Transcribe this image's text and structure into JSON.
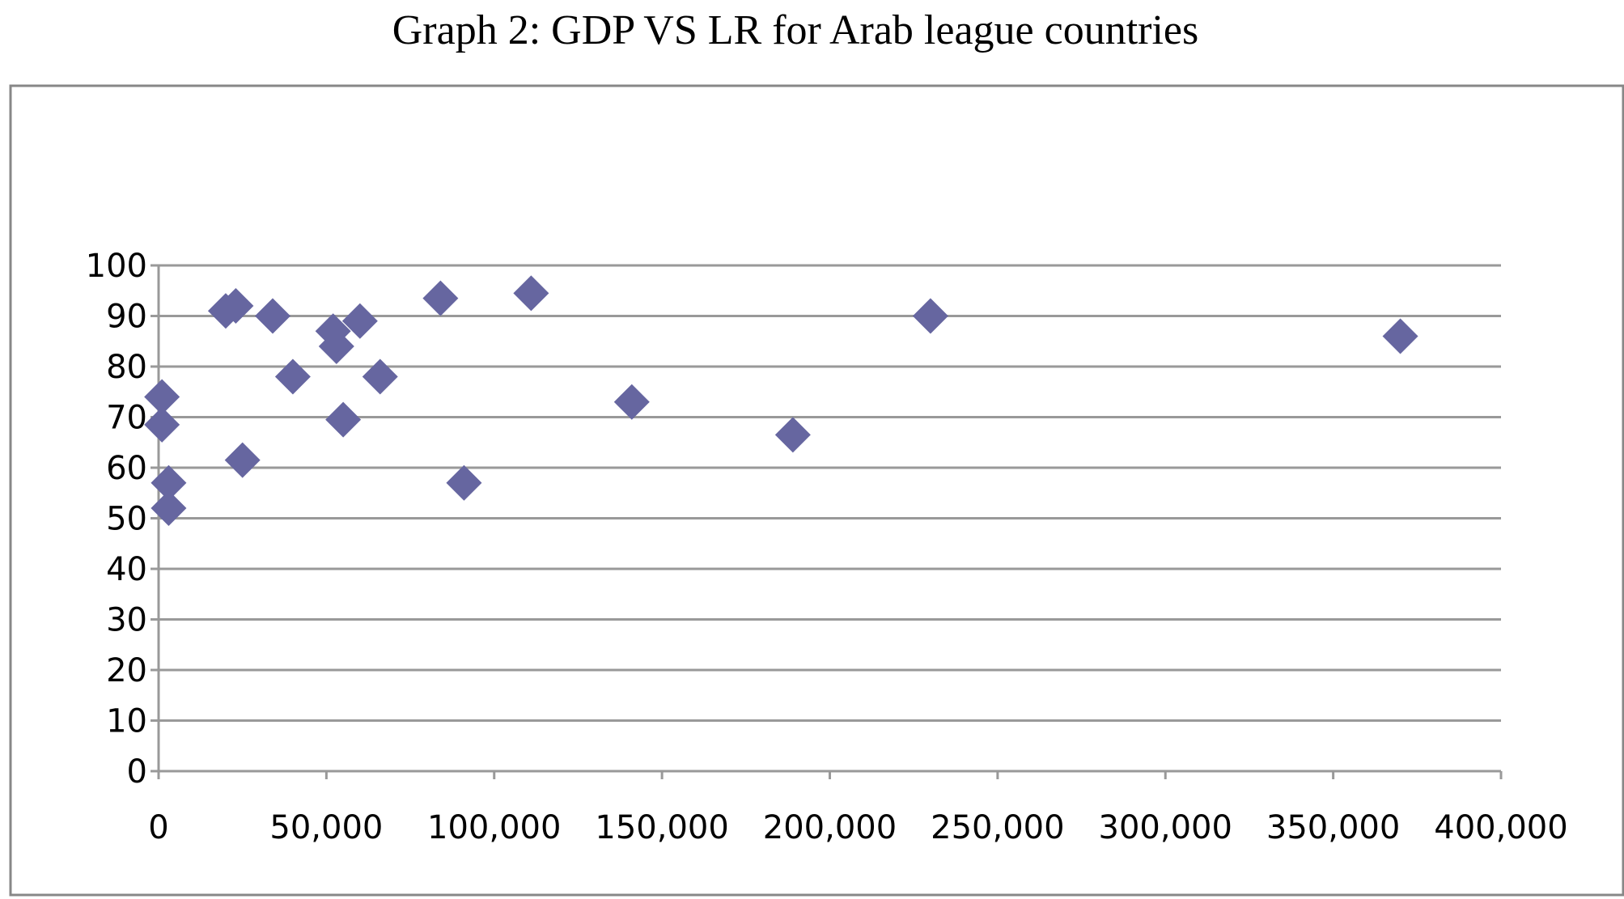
{
  "chart_data": {
    "type": "scatter",
    "title": "Graph 2: GDP VS LR for Arab league countries",
    "xlabel": "",
    "ylabel": "",
    "xlim": [
      0,
      400000
    ],
    "ylim": [
      0,
      100
    ],
    "x_ticks": [
      0,
      50000,
      100000,
      150000,
      200000,
      250000,
      300000,
      350000,
      400000
    ],
    "x_tick_labels": [
      "0",
      "50,000",
      "100,000",
      "150,000",
      "200,000",
      "250,000",
      "300,000",
      "350,000",
      "400,000"
    ],
    "y_ticks": [
      0,
      10,
      20,
      30,
      40,
      50,
      60,
      70,
      80,
      90,
      100
    ],
    "y_tick_labels": [
      "0",
      "10",
      "20",
      "30",
      "40",
      "50",
      "60",
      "70",
      "80",
      "90",
      "100"
    ],
    "grid": "horizontal",
    "legend": "none",
    "marker": "diamond",
    "marker_color": "#6666a0",
    "grid_color": "#999999",
    "series": [
      {
        "points": [
          {
            "x": 1000,
            "y": 74
          },
          {
            "x": 1000,
            "y": 68.5
          },
          {
            "x": 3000,
            "y": 57
          },
          {
            "x": 3000,
            "y": 52
          },
          {
            "x": 20000,
            "y": 91
          },
          {
            "x": 23000,
            "y": 92
          },
          {
            "x": 25000,
            "y": 61.5
          },
          {
            "x": 34000,
            "y": 90
          },
          {
            "x": 40000,
            "y": 78
          },
          {
            "x": 52000,
            "y": 87
          },
          {
            "x": 53000,
            "y": 84
          },
          {
            "x": 55000,
            "y": 69.5
          },
          {
            "x": 60000,
            "y": 89
          },
          {
            "x": 66000,
            "y": 78
          },
          {
            "x": 84000,
            "y": 93.5
          },
          {
            "x": 91000,
            "y": 57
          },
          {
            "x": 111000,
            "y": 94.5
          },
          {
            "x": 141000,
            "y": 73
          },
          {
            "x": 189000,
            "y": 66.5
          },
          {
            "x": 230000,
            "y": 90
          },
          {
            "x": 370000,
            "y": 86
          }
        ]
      }
    ]
  }
}
